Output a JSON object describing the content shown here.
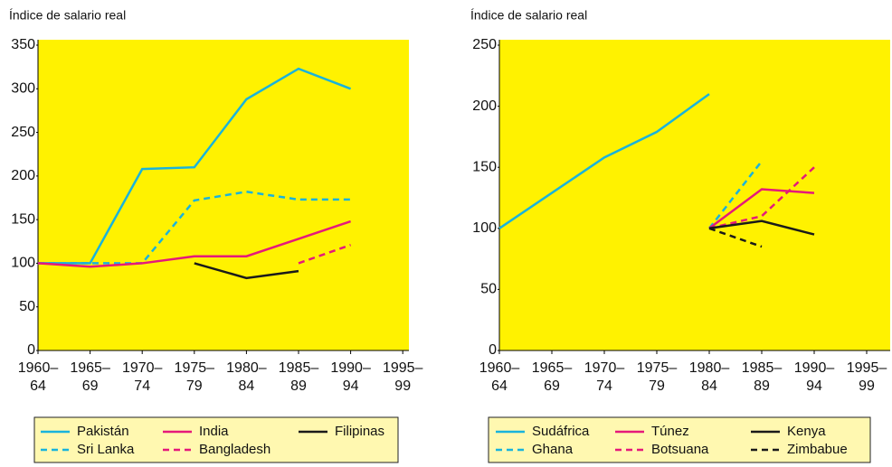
{
  "chart_data": [
    {
      "type": "line",
      "ylabel": "Índice de salario real",
      "categories": [
        [
          "1960–",
          "64"
        ],
        [
          "1965–",
          "69"
        ],
        [
          "1970–",
          "74"
        ],
        [
          "1975–",
          "79"
        ],
        [
          "1980–",
          "84"
        ],
        [
          "1985–",
          "89"
        ],
        [
          "1990–",
          "94"
        ],
        [
          "1995–",
          "99"
        ]
      ],
      "ylim": [
        0,
        350
      ],
      "yticks": [
        0,
        50,
        100,
        150,
        200,
        250,
        300,
        350
      ],
      "series": [
        {
          "name": "Pakistán",
          "color": "#19b3dc",
          "dashed": false,
          "values": [
            100,
            100,
            208,
            210,
            288,
            323,
            300,
            null
          ]
        },
        {
          "name": "Sri Lanka",
          "color": "#19b3dc",
          "dashed": true,
          "values": [
            100,
            100,
            100,
            172,
            182,
            173,
            173,
            null
          ]
        },
        {
          "name": "India",
          "color": "#e5197b",
          "dashed": false,
          "values": [
            100,
            96,
            100,
            108,
            108,
            128,
            148,
            null
          ]
        },
        {
          "name": "Bangladesh",
          "color": "#e5197b",
          "dashed": true,
          "values": [
            null,
            null,
            null,
            null,
            null,
            100,
            121,
            null
          ]
        },
        {
          "name": "Filipinas",
          "color": "#1a1a1a",
          "dashed": false,
          "values": [
            null,
            null,
            null,
            100,
            83,
            91,
            null,
            null
          ]
        }
      ]
    },
    {
      "type": "line",
      "ylabel": "Índice de salario real",
      "categories": [
        [
          "1960–",
          "64"
        ],
        [
          "1965–",
          "69"
        ],
        [
          "1970–",
          "74"
        ],
        [
          "1975–",
          "79"
        ],
        [
          "1980–",
          "84"
        ],
        [
          "1985–",
          "89"
        ],
        [
          "1990–",
          "94"
        ],
        [
          "1995–",
          "99"
        ]
      ],
      "ylim": [
        0,
        250
      ],
      "yticks": [
        0,
        50,
        100,
        150,
        200,
        250
      ],
      "series": [
        {
          "name": "Sudáfrica",
          "color": "#19b3dc",
          "dashed": false,
          "values": [
            100,
            129,
            158,
            179,
            210,
            null,
            null,
            null
          ]
        },
        {
          "name": "Ghana",
          "color": "#19b3dc",
          "dashed": true,
          "values": [
            null,
            null,
            null,
            null,
            100,
            155,
            null,
            null
          ]
        },
        {
          "name": "Túnez",
          "color": "#e5197b",
          "dashed": false,
          "values": [
            null,
            null,
            null,
            null,
            100,
            132,
            129,
            null
          ]
        },
        {
          "name": "Botsuana",
          "color": "#e5197b",
          "dashed": true,
          "values": [
            null,
            null,
            null,
            null,
            100,
            110,
            150,
            null
          ]
        },
        {
          "name": "Kenya",
          "color": "#1a1a1a",
          "dashed": false,
          "values": [
            null,
            null,
            null,
            null,
            100,
            106,
            95,
            null
          ]
        },
        {
          "name": "Zimbabue",
          "color": "#1a1a1a",
          "dashed": true,
          "values": [
            null,
            null,
            null,
            null,
            100,
            85,
            null,
            null
          ]
        }
      ]
    }
  ]
}
